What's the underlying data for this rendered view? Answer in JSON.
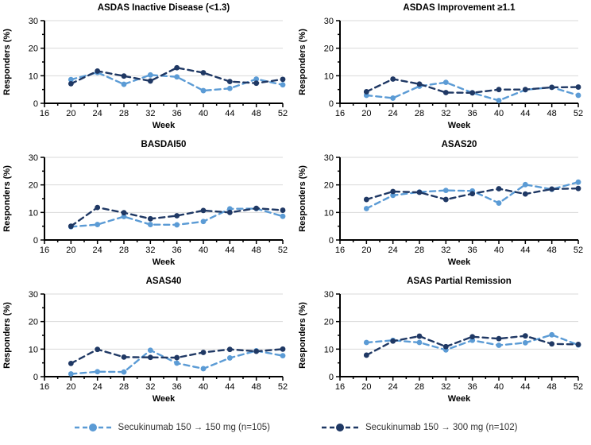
{
  "figure": {
    "background": "#ffffff",
    "axis_color": "#000000",
    "gridline_color": "#d9d9d9",
    "tick_label_color": "#000000"
  },
  "legend": {
    "items": [
      {
        "label": "Secukinumab 150 → 150 mg (n=105)",
        "color": "#5B9BD5",
        "marker": "circle",
        "line_style": "dashed"
      },
      {
        "label": "Secukinumab 150 → 300 mg (n=102)",
        "color": "#1F3864",
        "marker": "circle",
        "line_style": "dashed"
      }
    ],
    "position": "bottom-center"
  },
  "chart_data": [
    {
      "type": "line",
      "title": "ASDAS Inactive Disease (<1.3)",
      "xlabel": "Week",
      "ylabel": "Responders (%)",
      "xlim": [
        16,
        52
      ],
      "ylim": [
        0,
        30
      ],
      "x_ticks": [
        16,
        20,
        24,
        28,
        32,
        36,
        40,
        44,
        48,
        52
      ],
      "y_ticks": [
        0,
        10,
        20,
        30
      ],
      "grid": true,
      "x": [
        20,
        24,
        28,
        32,
        36,
        40,
        44,
        48,
        52
      ],
      "series": [
        {
          "name": "Secukinumab 150 → 150 mg (n=105)",
          "color": "#5B9BD5",
          "values": [
            8.6,
            11.2,
            6.9,
            10.3,
            9.6,
            4.6,
            5.4,
            8.8,
            6.7
          ]
        },
        {
          "name": "Secukinumab 150 → 300 mg (n=102)",
          "color": "#1F3864",
          "values": [
            7.1,
            11.7,
            9.9,
            8.1,
            12.9,
            11.1,
            7.9,
            7.3,
            8.7
          ]
        }
      ]
    },
    {
      "type": "line",
      "title": "ASDAS Improvement ≥1.1",
      "xlabel": "Week",
      "ylabel": "Responders (%)",
      "xlim": [
        16,
        52
      ],
      "ylim": [
        0,
        30
      ],
      "x_ticks": [
        16,
        20,
        24,
        28,
        32,
        36,
        40,
        44,
        48,
        52
      ],
      "y_ticks": [
        0,
        10,
        20,
        30
      ],
      "grid": true,
      "x": [
        20,
        24,
        28,
        32,
        36,
        40,
        44,
        48,
        52
      ],
      "series": [
        {
          "name": "Secukinumab 150 → 150 mg (n=105)",
          "color": "#5B9BD5",
          "values": [
            2.9,
            1.9,
            6.2,
            7.6,
            3.8,
            1.0,
            4.9,
            5.8,
            2.9
          ]
        },
        {
          "name": "Secukinumab 150 → 300 mg (n=102)",
          "color": "#1F3864",
          "values": [
            4.2,
            8.8,
            7.0,
            3.9,
            3.8,
            5.0,
            5.0,
            5.8,
            5.9
          ]
        }
      ]
    },
    {
      "type": "line",
      "title": "BASDAI50",
      "xlabel": "Week",
      "ylabel": "Responders (%)",
      "xlim": [
        16,
        52
      ],
      "ylim": [
        0,
        30
      ],
      "x_ticks": [
        16,
        20,
        24,
        28,
        32,
        36,
        40,
        44,
        48,
        52
      ],
      "y_ticks": [
        0,
        10,
        20,
        30
      ],
      "grid": true,
      "x": [
        20,
        24,
        28,
        32,
        36,
        40,
        44,
        48,
        52
      ],
      "series": [
        {
          "name": "Secukinumab 150 → 150 mg (n=105)",
          "color": "#5B9BD5",
          "values": [
            4.8,
            5.6,
            8.5,
            5.6,
            5.5,
            6.7,
            11.3,
            11.4,
            8.6
          ]
        },
        {
          "name": "Secukinumab 150 → 300 mg (n=102)",
          "color": "#1F3864",
          "values": [
            5.0,
            11.8,
            9.9,
            7.7,
            8.8,
            10.7,
            10.0,
            11.5,
            10.8
          ]
        }
      ]
    },
    {
      "type": "line",
      "title": "ASAS20",
      "xlabel": "Week",
      "ylabel": "Responders (%)",
      "xlim": [
        16,
        52
      ],
      "ylim": [
        0,
        30
      ],
      "x_ticks": [
        16,
        20,
        24,
        28,
        32,
        36,
        40,
        44,
        48,
        52
      ],
      "y_ticks": [
        0,
        10,
        20,
        30
      ],
      "grid": true,
      "x": [
        20,
        24,
        28,
        32,
        36,
        40,
        44,
        48,
        52
      ],
      "series": [
        {
          "name": "Secukinumab 150 → 150 mg (n=105)",
          "color": "#5B9BD5",
          "values": [
            11.4,
            16.2,
            17.4,
            18.0,
            17.8,
            13.4,
            20.1,
            18.4,
            21.0
          ]
        },
        {
          "name": "Secukinumab 150 → 300 mg (n=102)",
          "color": "#1F3864",
          "values": [
            14.7,
            17.6,
            17.3,
            14.7,
            16.8,
            18.6,
            16.7,
            18.5,
            18.7
          ]
        }
      ]
    },
    {
      "type": "line",
      "title": "ASAS40",
      "xlabel": "Week",
      "ylabel": "Responders (%)",
      "xlim": [
        16,
        52
      ],
      "ylim": [
        0,
        30
      ],
      "x_ticks": [
        16,
        20,
        24,
        28,
        32,
        36,
        40,
        44,
        48,
        52
      ],
      "y_ticks": [
        0,
        10,
        20,
        30
      ],
      "grid": true,
      "x": [
        20,
        24,
        28,
        32,
        36,
        40,
        44,
        48,
        52
      ],
      "series": [
        {
          "name": "Secukinumab 150 → 150 mg (n=105)",
          "color": "#5B9BD5",
          "values": [
            1.0,
            1.8,
            1.7,
            9.6,
            4.9,
            2.9,
            6.8,
            9.4,
            7.6
          ]
        },
        {
          "name": "Secukinumab 150 → 300 mg (n=102)",
          "color": "#1F3864",
          "values": [
            4.8,
            9.9,
            7.1,
            7.0,
            6.9,
            8.8,
            9.9,
            9.2,
            10.0
          ]
        }
      ]
    },
    {
      "type": "line",
      "title": "ASAS Partial Remission",
      "xlabel": "Week",
      "ylabel": "Responders (%)",
      "xlim": [
        16,
        52
      ],
      "ylim": [
        0,
        30
      ],
      "x_ticks": [
        16,
        20,
        24,
        28,
        32,
        36,
        40,
        44,
        48,
        52
      ],
      "y_ticks": [
        0,
        10,
        20,
        30
      ],
      "grid": true,
      "x": [
        20,
        24,
        28,
        32,
        36,
        40,
        44,
        48,
        52
      ],
      "series": [
        {
          "name": "Secukinumab 150 → 150 mg (n=105)",
          "color": "#5B9BD5",
          "values": [
            12.4,
            13.2,
            12.4,
            9.7,
            13.2,
            11.4,
            12.3,
            15.2,
            11.5
          ]
        },
        {
          "name": "Secukinumab 150 → 300 mg (n=102)",
          "color": "#1F3864",
          "values": [
            7.8,
            12.9,
            14.7,
            10.9,
            14.5,
            13.8,
            14.8,
            11.9,
            11.7
          ]
        }
      ]
    }
  ]
}
